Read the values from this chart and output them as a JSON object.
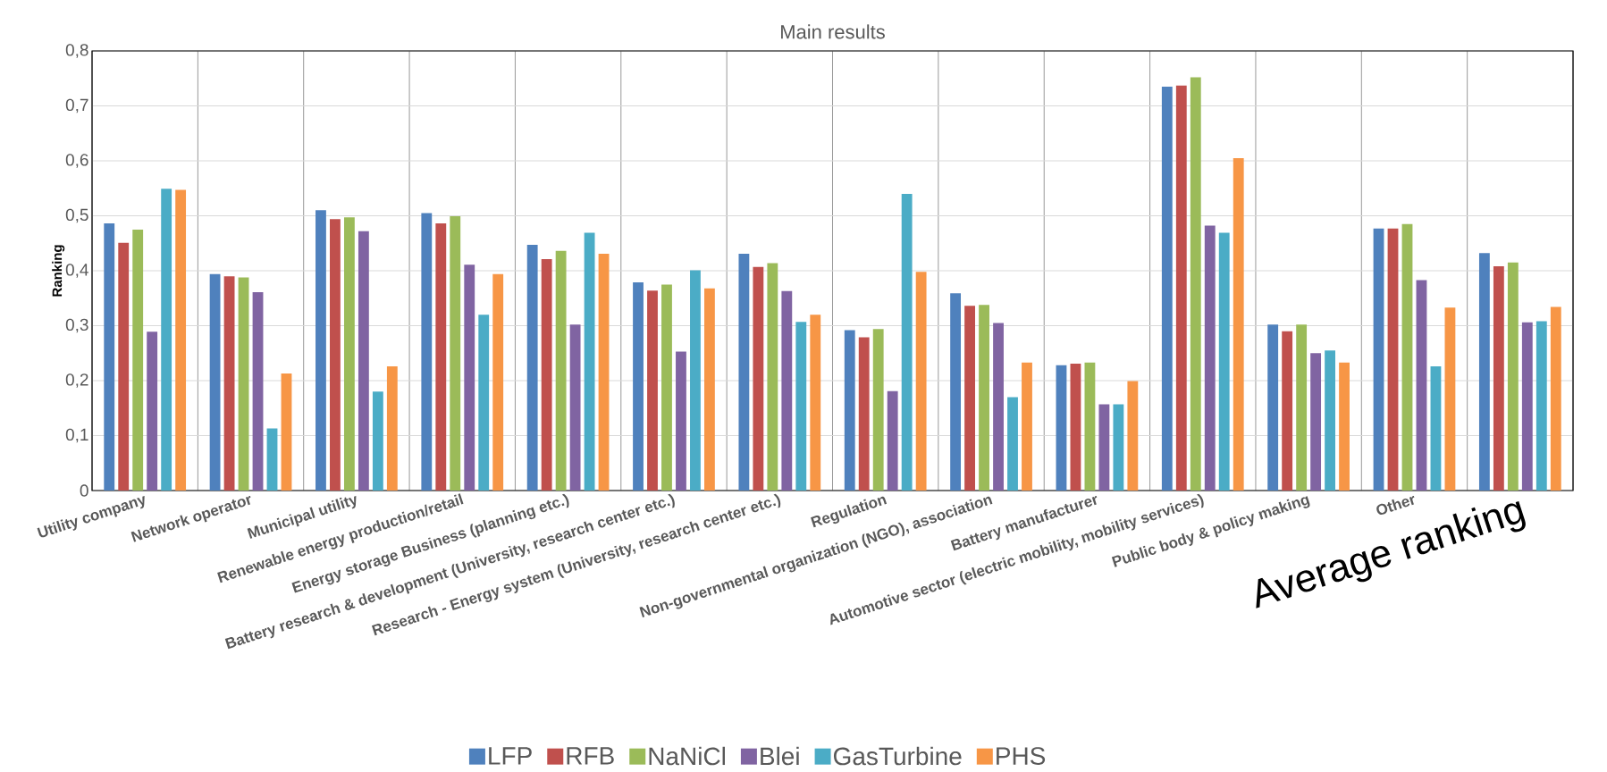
{
  "chart_data": {
    "type": "bar",
    "title": "Main results",
    "ylabel": "Ranking",
    "categories": [
      "Utility company",
      "Network operator",
      "Municipal utility",
      "Renewable energy production/retail",
      "Energy storage Business (planning etc.)",
      "Battery research & development (University, research center etc.)",
      "Research - Energy system (University, research center etc.)",
      "Regulation",
      "Non-governmental organization (NGO), association",
      "Battery manufacturer",
      "Automotive sector (electric mobility, mobility services)",
      "Public body & policy making",
      "Other",
      "Average ranking"
    ],
    "series": [
      {
        "name": "LFP",
        "color": "#4f81bd",
        "values": [
          0.486,
          0.394,
          0.51,
          0.505,
          0.447,
          0.379,
          0.431,
          0.292,
          0.359,
          0.228,
          0.735,
          0.302,
          0.477,
          0.432
        ]
      },
      {
        "name": "RFB",
        "color": "#c0504d",
        "values": [
          0.451,
          0.39,
          0.494,
          0.486,
          0.421,
          0.364,
          0.407,
          0.279,
          0.336,
          0.231,
          0.737,
          0.29,
          0.477,
          0.408
        ]
      },
      {
        "name": "NaNiCl",
        "color": "#9bbb59",
        "values": [
          0.475,
          0.388,
          0.497,
          0.499,
          0.436,
          0.375,
          0.414,
          0.294,
          0.338,
          0.233,
          0.752,
          0.302,
          0.485,
          0.415
        ]
      },
      {
        "name": "Blei",
        "color": "#8064a2",
        "values": [
          0.289,
          0.361,
          0.472,
          0.411,
          0.302,
          0.253,
          0.363,
          0.181,
          0.305,
          0.157,
          0.482,
          0.25,
          0.383,
          0.306
        ]
      },
      {
        "name": "GasTurbine",
        "color": "#4bacc6",
        "values": [
          0.549,
          0.113,
          0.18,
          0.32,
          0.469,
          0.401,
          0.307,
          0.54,
          0.17,
          0.157,
          0.469,
          0.255,
          0.226,
          0.308
        ]
      },
      {
        "name": "PHS",
        "color": "#f79646",
        "values": [
          0.547,
          0.213,
          0.226,
          0.394,
          0.431,
          0.368,
          0.32,
          0.398,
          0.233,
          0.199,
          0.605,
          0.233,
          0.333,
          0.334
        ]
      }
    ],
    "ylim": [
      0,
      0.8
    ],
    "yticks": [
      0,
      {
        "value": 0.1,
        "label": "0,1"
      },
      {
        "value": 0.2,
        "label": "0,2"
      },
      {
        "value": 0.3,
        "label": "0,3"
      },
      {
        "value": 0.4,
        "label": "0,4"
      },
      {
        "value": 0.5,
        "label": "0,5"
      },
      {
        "value": 0.6,
        "label": "0,6"
      },
      {
        "value": 0.7,
        "label": "0,7"
      },
      {
        "value": 0.8,
        "label": "0,8"
      }
    ],
    "grid": true,
    "legend": "bottom"
  }
}
